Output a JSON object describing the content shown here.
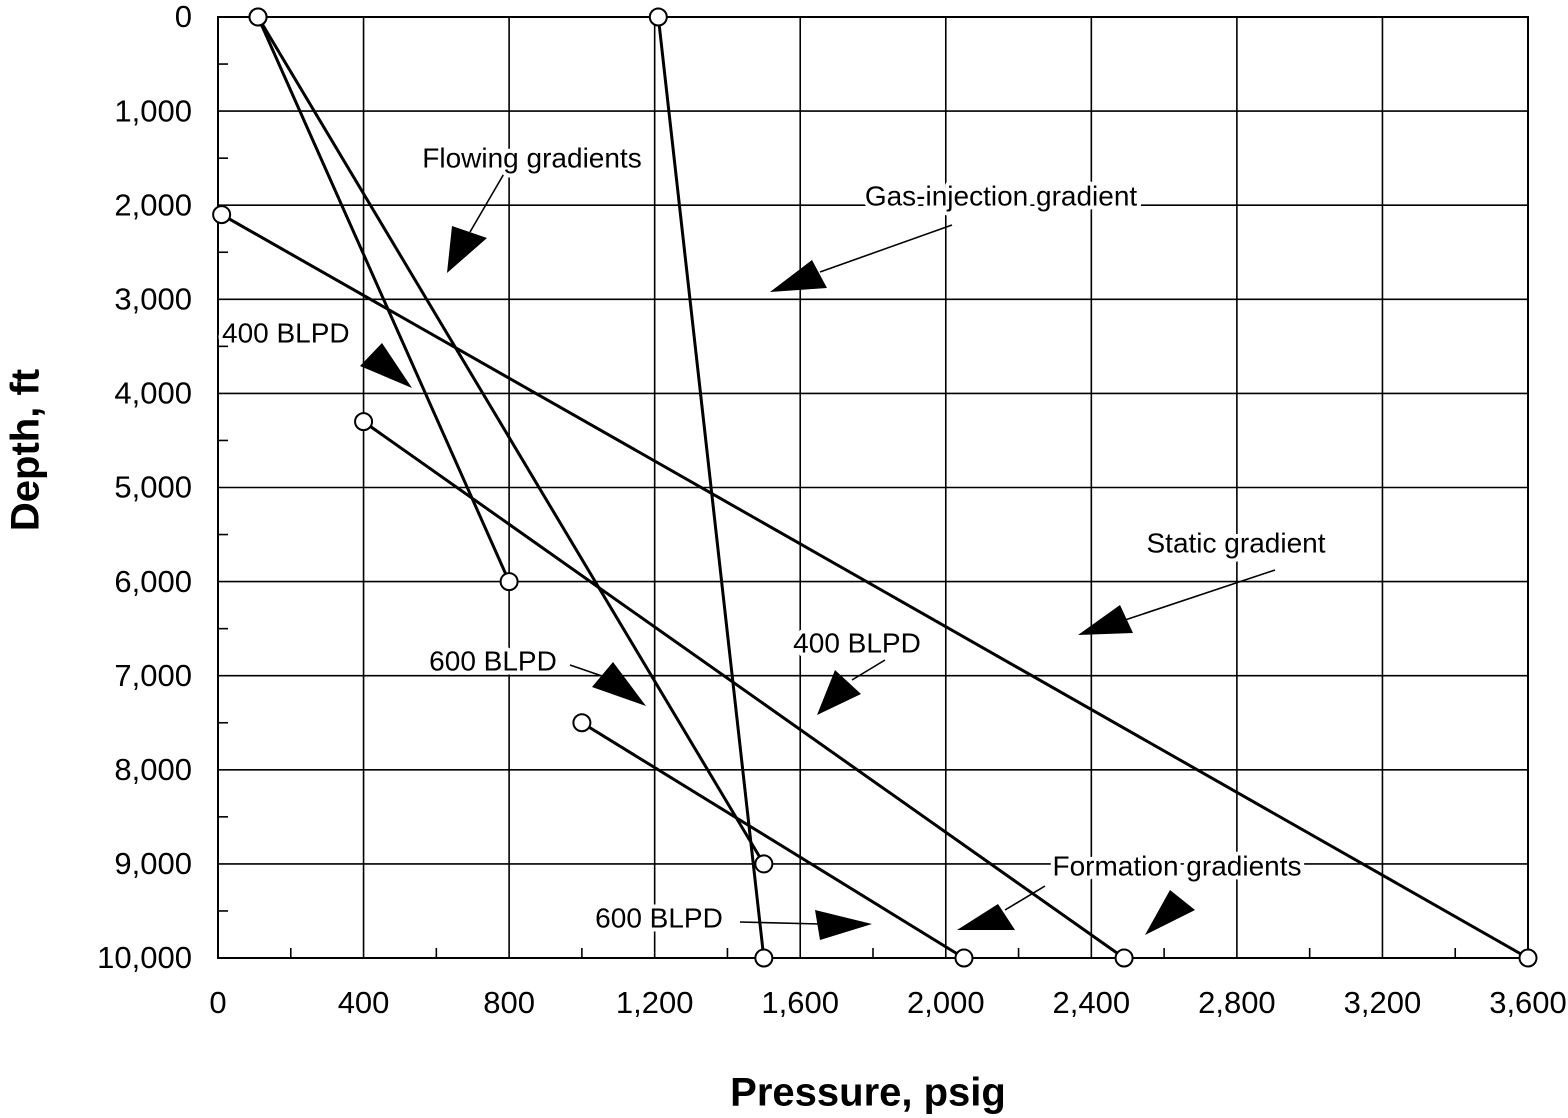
{
  "chart_data": {
    "type": "line",
    "x_label": "Pressure, psig",
    "y_label": "Depth, ft",
    "annotations": [
      "Flowing gradients",
      "Gas-injection gradient",
      "400 BLPD",
      "600 BLPD",
      "400 BLPD",
      "Static gradient",
      "Formation gradients",
      "600 BLPD"
    ],
    "xlim": [
      0,
      3600
    ],
    "ylim": [
      10000,
      0
    ],
    "xticks": [
      0,
      400,
      800,
      {
        "value": 1200,
        "label": "1,200"
      },
      {
        "value": 1600,
        "label": "1,600"
      },
      {
        "value": 2000,
        "label": "2,000"
      },
      {
        "value": 2400,
        "label": "2,400"
      },
      {
        "value": 2800,
        "label": "2,800"
      },
      {
        "value": 3200,
        "label": "3,200"
      },
      {
        "value": 3600,
        "label": "3,600"
      }
    ],
    "yticks": [
      0,
      {
        "value": 1000,
        "label": "1,000"
      },
      {
        "value": 2000,
        "label": "2,000"
      },
      {
        "value": 3000,
        "label": "3,000"
      },
      {
        "value": 4000,
        "label": "4,000"
      },
      {
        "value": 5000,
        "label": "5,000"
      },
      {
        "value": 6000,
        "label": "6,000"
      },
      {
        "value": 7000,
        "label": "7,000"
      },
      {
        "value": 8000,
        "label": "8,000"
      },
      {
        "value": 9000,
        "label": "9,000"
      },
      {
        "value": 10000,
        "label": "10,000"
      }
    ],
    "xminorticks": [
      200,
      600,
      1000,
      1400,
      1800,
      2200,
      2600,
      3000,
      3400
    ],
    "yminorticks": [
      500,
      1500,
      2500,
      3500,
      4500,
      5500,
      6500,
      7500,
      8500,
      9500
    ],
    "grid": true,
    "markers": true,
    "series": [
      {
        "color": "#000000",
        "x": [
          110,
          800
        ],
        "values": [
          0,
          6000
        ]
      },
      {
        "color": "#000000",
        "x": [
          110,
          1500
        ],
        "values": [
          0,
          9000
        ]
      },
      {
        "color": "#000000",
        "x": [
          1210,
          1500
        ],
        "values": [
          0,
          10000
        ]
      },
      {
        "color": "#000000",
        "x": [
          10,
          3600
        ],
        "values": [
          2100,
          10000
        ]
      },
      {
        "color": "#000000",
        "x": [
          400,
          2490
        ],
        "values": [
          4300,
          10000
        ]
      },
      {
        "color": "#000000",
        "x": [
          1000,
          2050
        ],
        "values": [
          7500,
          10000
        ]
      }
    ]
  }
}
